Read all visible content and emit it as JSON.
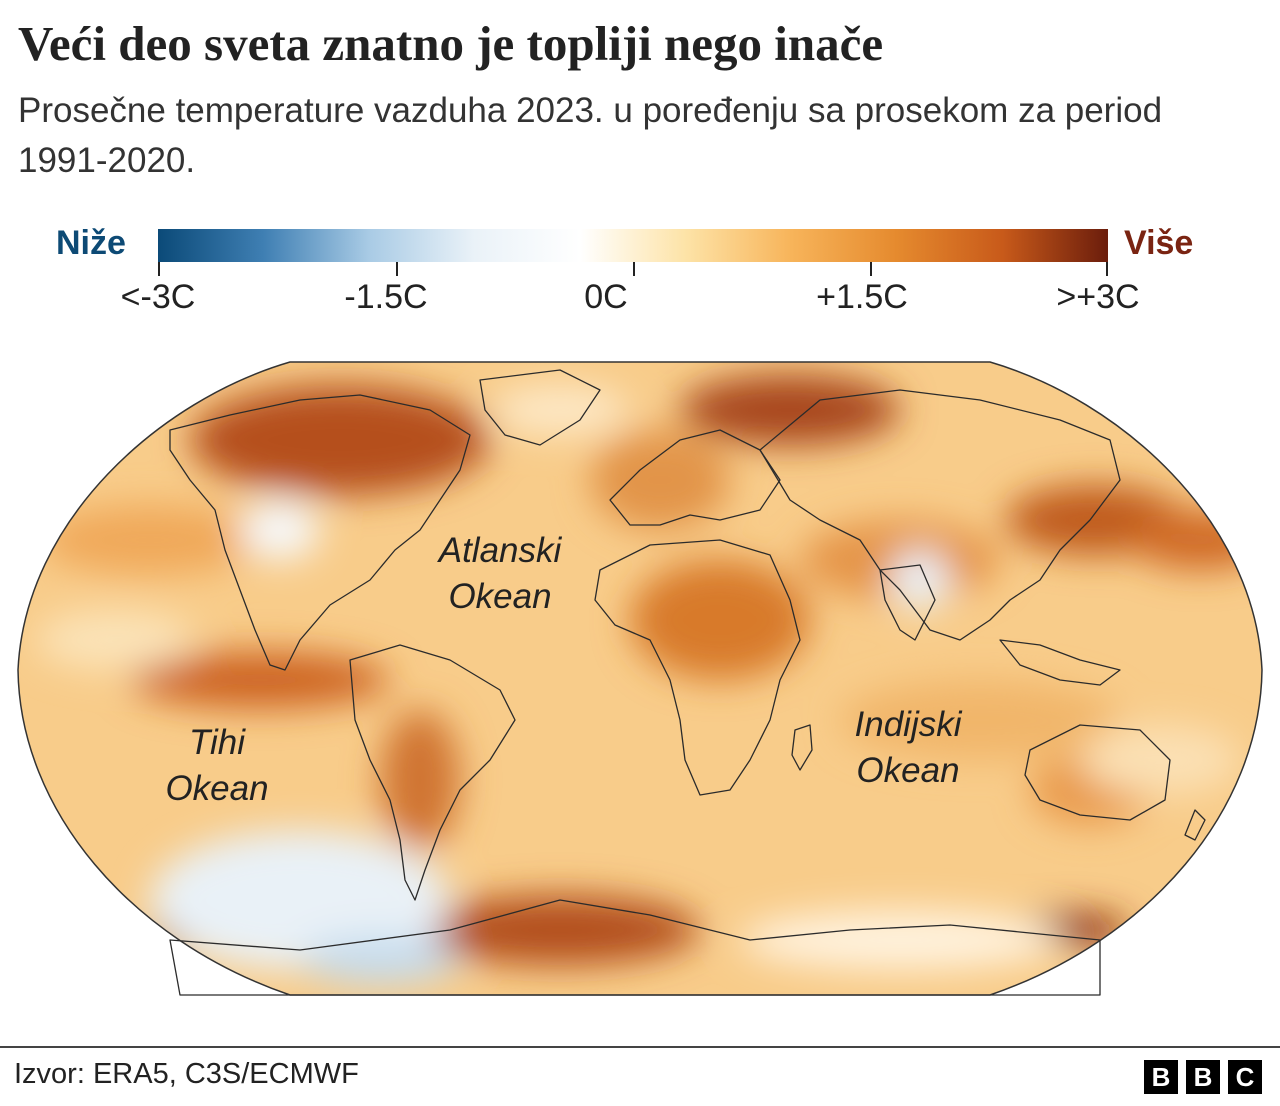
{
  "title": "Veći deo sveta znatno je topliji nego inače",
  "subtitle": "Prosečne temperature vazduha 2023. u poređenju sa prosekom za period 1991-2020.",
  "legend": {
    "low_label": "Niže",
    "high_label": "Više",
    "low_color": "#0d4a75",
    "high_color": "#7a2412",
    "ticks": [
      "<-3C",
      "-1.5C",
      "0C",
      "+1.5C",
      ">+3C"
    ],
    "tick_values": [
      -3,
      -1.5,
      0,
      1.5,
      3
    ],
    "colors": [
      "#0b4a78",
      "#3f7fb3",
      "#a9cbe5",
      "#eaf2f8",
      "#ffffff",
      "#fde3a7",
      "#f7b45a",
      "#e58a2e",
      "#c85a1a",
      "#6b1d0c"
    ]
  },
  "map": {
    "projection": "robinson",
    "labels": [
      {
        "lines": [
          "Atlanski",
          "Okean"
        ]
      },
      {
        "lines": [
          "Tihi",
          "Okean"
        ]
      },
      {
        "lines": [
          "Indijski",
          "Okean"
        ]
      }
    ]
  },
  "footer": {
    "source": "Izvor: ERA5, C3S/ECMWF",
    "logo_letters": [
      "B",
      "B",
      "C"
    ]
  }
}
